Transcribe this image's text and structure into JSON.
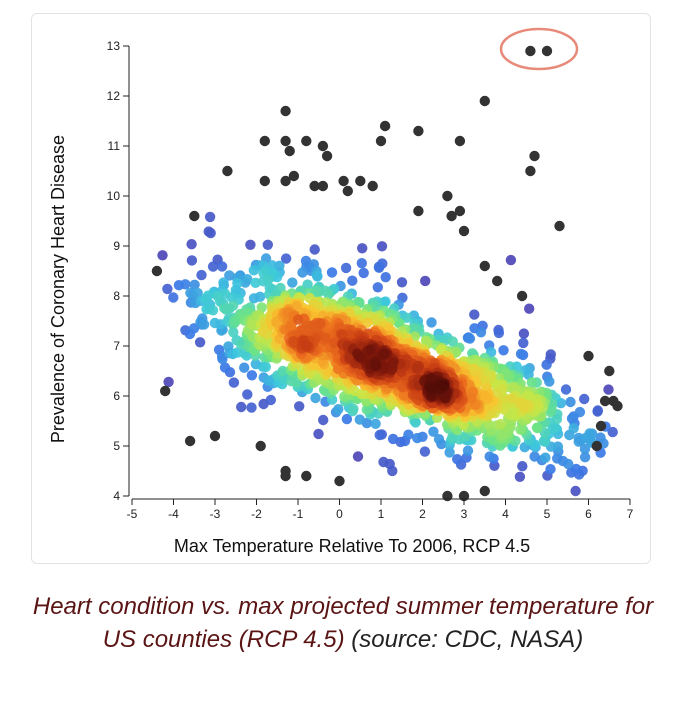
{
  "chart_data": {
    "type": "scatter",
    "xlabel": "Max Temperature Relative To 2006, RCP 4.5",
    "ylabel": "Prevalence of Coronary Heart Disease",
    "xlim": [
      -5,
      7
    ],
    "ylim": [
      4,
      13
    ],
    "x_ticks": [
      "-5",
      "-4",
      "-3",
      "-2",
      "-1",
      "0",
      "1",
      "2",
      "3",
      "4",
      "5",
      "6",
      "7"
    ],
    "y_ticks": [
      "4",
      "5",
      "6",
      "7",
      "8",
      "9",
      "10",
      "11",
      "12",
      "13"
    ],
    "color_encoding": "point density (dark red = highest density, blue/purple = low, dark gray = isolated outliers)",
    "density_center": [
      2,
      6.3
    ],
    "secondary_density_center": [
      -0.5,
      7.2
    ],
    "outliers": [
      {
        "x": 4.6,
        "y": 12.9
      },
      {
        "x": 5.0,
        "y": 12.9
      },
      {
        "x": 3.5,
        "y": 11.9
      },
      {
        "x": 1.1,
        "y": 11.4
      },
      {
        "x": 1.9,
        "y": 11.3
      },
      {
        "x": 2.9,
        "y": 11.1
      },
      {
        "x": 1.0,
        "y": 11.1
      },
      {
        "x": -1.3,
        "y": 11.7
      },
      {
        "x": -1.8,
        "y": 11.1
      },
      {
        "x": -1.3,
        "y": 11.1
      },
      {
        "x": -0.8,
        "y": 11.1
      },
      {
        "x": -0.4,
        "y": 11.0
      },
      {
        "x": -1.2,
        "y": 10.9
      },
      {
        "x": -0.3,
        "y": 10.8
      },
      {
        "x": 4.7,
        "y": 10.8
      },
      {
        "x": 4.6,
        "y": 10.5
      },
      {
        "x": -2.7,
        "y": 10.5
      },
      {
        "x": -1.3,
        "y": 10.3
      },
      {
        "x": -1.1,
        "y": 10.4
      },
      {
        "x": -1.8,
        "y": 10.3
      },
      {
        "x": 0.1,
        "y": 10.3
      },
      {
        "x": 0.5,
        "y": 10.3
      },
      {
        "x": 0.8,
        "y": 10.2
      },
      {
        "x": -0.6,
        "y": 10.2
      },
      {
        "x": -0.4,
        "y": 10.2
      },
      {
        "x": 0.2,
        "y": 10.1
      },
      {
        "x": 2.6,
        "y": 10.0
      },
      {
        "x": 2.7,
        "y": 9.6
      },
      {
        "x": 2.9,
        "y": 9.7
      },
      {
        "x": 1.9,
        "y": 9.7
      },
      {
        "x": 5.3,
        "y": 9.4
      },
      {
        "x": -3.5,
        "y": 9.6
      },
      {
        "x": 3.0,
        "y": 9.3
      },
      {
        "x": -4.4,
        "y": 8.5
      },
      {
        "x": 3.5,
        "y": 8.6
      },
      {
        "x": 3.8,
        "y": 8.3
      },
      {
        "x": 6.0,
        "y": 6.8
      },
      {
        "x": 6.5,
        "y": 6.5
      },
      {
        "x": 6.6,
        "y": 5.9
      },
      {
        "x": 6.7,
        "y": 5.8
      },
      {
        "x": 6.4,
        "y": 5.9
      },
      {
        "x": 6.3,
        "y": 5.4
      },
      {
        "x": 6.2,
        "y": 5.0
      },
      {
        "x": -4.2,
        "y": 6.1
      },
      {
        "x": -3.6,
        "y": 5.1
      },
      {
        "x": -3.0,
        "y": 5.2
      },
      {
        "x": -1.9,
        "y": 5.0
      },
      {
        "x": -1.3,
        "y": 4.5
      },
      {
        "x": -1.3,
        "y": 4.4
      },
      {
        "x": -0.8,
        "y": 4.4
      },
      {
        "x": 0.0,
        "y": 4.3
      },
      {
        "x": 2.6,
        "y": 4.0
      },
      {
        "x": 3.0,
        "y": 4.0
      },
      {
        "x": 3.5,
        "y": 4.1
      },
      {
        "x": 4.4,
        "y": 8.0
      }
    ],
    "annotation": {
      "type": "ellipse",
      "target": "outliers at y≈12.9",
      "color": "#e88a7a"
    },
    "colors": {
      "high_density": "#5a0f0a",
      "mid_high": "#e3561c",
      "mid": "#f5c431",
      "mid_low": "#6fe08a",
      "low": "#3f8fe8",
      "lowest": "#5a3fb8",
      "outlier": "#333333"
    }
  },
  "caption": {
    "main": "Heart condition vs. max projected summer temperature for US counties (RCP 4.5)",
    "source": "(source: CDC, NASA)"
  }
}
